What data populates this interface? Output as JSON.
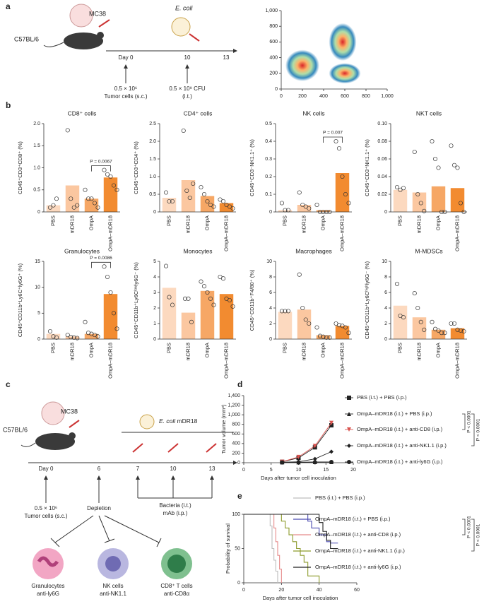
{
  "figure": {
    "panel_labels": [
      "a",
      "b",
      "c",
      "d",
      "e"
    ]
  },
  "scheme_a": {
    "cell_line": "MC38",
    "mouse": "C57BL/6",
    "bacteria": "E. coli",
    "days": [
      "Day 0",
      "10",
      "13"
    ],
    "tumor_dose": "0.5 × 10⁶",
    "tumor_route": "Tumor cells (s.c.)",
    "bacteria_dose": "0.5 × 10⁹ CFU",
    "bacteria_route": "(i.t.)"
  },
  "scheme_c": {
    "cell_line": "MC38",
    "mouse": "C57BL/6",
    "bacteria": "E. coli",
    "strain": "mDR18",
    "days": [
      "Day 0",
      "6",
      "7",
      "10",
      "13"
    ],
    "tumor_dose": "0.5 × 10⁶",
    "tumor_route": "Tumor cells (s.c.)",
    "depletion": "Depletion",
    "treatment_1": "Bacteria (i.t.)",
    "treatment_2": "mAb (i.p.)",
    "cells": [
      {
        "name": "Granulocytes",
        "antibody": "anti-ly6G"
      },
      {
        "name": "NK cells",
        "antibody": "anti-NK1.1"
      },
      {
        "name": "CD8⁺ T cells",
        "antibody": "anti-CD8α"
      }
    ]
  },
  "chart_data": [
    {
      "type": "bar_dot",
      "title": "CD8⁺ cells",
      "ylabel": "CD45⁺CD3⁺CD8⁺ (%)",
      "categories": [
        "PBS",
        "mDR18",
        "OmpA",
        "OmpA–mDR18"
      ],
      "colors": [
        "#fcd9bf",
        "#fbc7a0",
        "#f6a765",
        "#f28b30"
      ],
      "values": [
        0.15,
        0.6,
        0.3,
        0.78
      ],
      "points": [
        [
          0.1,
          0.15,
          0.3
        ],
        [
          1.85,
          0.3,
          0.1,
          0.15
        ],
        [
          0.5,
          0.3,
          0.3,
          0.2,
          0.1
        ],
        [
          0.95,
          0.85,
          0.8,
          0.6,
          0.5
        ]
      ],
      "ylim": [
        0,
        2
      ],
      "yticks": [
        0,
        0.5,
        {
          "value": 1,
          "label": "1.0"
        },
        1.5,
        {
          "value": 2,
          "label": "2.0"
        }
      ],
      "annotation": "P = 0.0067"
    },
    {
      "type": "bar_dot",
      "title": "CD4⁺ cells",
      "ylabel": "CD45⁺CD3⁺CD4⁺ (%)",
      "categories": [
        "PBS",
        "mDR18",
        "OmpA",
        "OmpA–mDR18"
      ],
      "colors": [
        "#fcd9bf",
        "#fbc7a0",
        "#f6a765",
        "#f28b30"
      ],
      "values": [
        0.4,
        0.9,
        0.45,
        0.25
      ],
      "points": [
        [
          0.55,
          0.3,
          0.3
        ],
        [
          2.3,
          0.6,
          0.4,
          0.8
        ],
        [
          0.7,
          0.5,
          0.3,
          0.2,
          0.15
        ],
        [
          0.35,
          0.3,
          0.2,
          0.15,
          0.1
        ]
      ],
      "ylim": [
        0,
        2.5
      ],
      "yticks": [
        0,
        0.5,
        {
          "value": 1,
          "label": "1.0"
        },
        1.5,
        {
          "value": 2,
          "label": "2.0"
        },
        2.5
      ]
    },
    {
      "type": "bar_dot",
      "title": "NK cells",
      "ylabel": "CD45⁺CD3⁻NK1.1⁺ (%)",
      "categories": [
        "PBS",
        "mDR18",
        "OmpA",
        "OmpA–mDR18"
      ],
      "colors": [
        "#fcd9bf",
        "#fbc7a0",
        "#f6a765",
        "#f28b30"
      ],
      "values": [
        0.01,
        0.04,
        0.01,
        0.22
      ],
      "points": [
        [
          0.05,
          0.01,
          0.01
        ],
        [
          0.11,
          0.04,
          0.03,
          0.02
        ],
        [
          0.04,
          0,
          0,
          0,
          0
        ],
        [
          0.4,
          0.36,
          0.2,
          0.1,
          0.05
        ]
      ],
      "ylim": [
        0,
        0.5
      ],
      "yticks": [
        0,
        0.1,
        0.2,
        0.3,
        0.4,
        0.5
      ],
      "annotation": "P = 0.007"
    },
    {
      "type": "bar_dot",
      "title": "NKT cells",
      "ylabel": "CD45⁺CD3⁺NK1.1⁺ (%)",
      "categories": [
        "PBS",
        "mDR18",
        "OmpA",
        "OmpA–mDR18"
      ],
      "colors": [
        "#fcd9bf",
        "#fbc7a0",
        "#f6a765",
        "#f28b30"
      ],
      "values": [
        0.025,
        0.022,
        0.029,
        0.027
      ],
      "points": [
        [
          0.028,
          0.025,
          0.027
        ],
        [
          0.068,
          0.02,
          0.01,
          0.001
        ],
        [
          0.08,
          0.06,
          0.05,
          0,
          0
        ],
        [
          0.075,
          0.053,
          0.05,
          0.01,
          0
        ]
      ],
      "ylim": [
        0,
        0.1
      ],
      "yticks": [
        0,
        0.02,
        0.04,
        0.06,
        0.08,
        {
          "value": 0.1,
          "label": "0.10"
        }
      ]
    },
    {
      "type": "bar_dot",
      "title": "Granulocytes",
      "ylabel": "CD45⁺CD11b⁺Ly6C⁺ly6G⁺ (%)",
      "categories": [
        "PBS",
        "mDR18",
        "OmpA",
        "OmpA–mDR18"
      ],
      "colors": [
        "#fcd9bf",
        "#fbc7a0",
        "#f6a765",
        "#f28b30"
      ],
      "values": [
        1,
        0.5,
        1,
        8.7
      ],
      "points": [
        [
          1.5,
          0.5,
          0.3
        ],
        [
          0.8,
          0.4,
          0.3,
          0.2
        ],
        [
          3.3,
          1.2,
          1,
          0.8,
          0.5
        ],
        [
          14,
          12,
          9,
          5,
          2
        ]
      ],
      "ylim": [
        0,
        15
      ],
      "yticks": [
        0,
        5,
        10,
        15
      ],
      "annotation": "P = 0.0086"
    },
    {
      "type": "bar_dot",
      "title": "Monocytes",
      "ylabel": "CD45⁺CD11b⁺Ly6Cˡᵒʷly6G⁻ (%)",
      "categories": [
        "PBS",
        "mDR18",
        "OmpA",
        "OmpA–mDR18"
      ],
      "colors": [
        "#fcd9bf",
        "#fbc7a0",
        "#f6a765",
        "#f28b30"
      ],
      "values": [
        3.3,
        1.7,
        3.1,
        2.9
      ],
      "points": [
        [
          4.7,
          2.7,
          2.2
        ],
        [
          2.6,
          2.6,
          1.1
        ],
        [
          3.7,
          3.4,
          3,
          2.6,
          2.2
        ],
        [
          4,
          3.9,
          2.6,
          2.5,
          2.1
        ]
      ],
      "ylim": [
        0,
        5
      ],
      "yticks": [
        0,
        1,
        2,
        3,
        4,
        5
      ]
    },
    {
      "type": "bar_dot",
      "title": "Macrophages",
      "ylabel": "CD45⁺CD11b⁺F4/80⁺ (%)",
      "categories": [
        "PBS",
        "mDR18",
        "OmpA",
        "OmpA–mDR18"
      ],
      "colors": [
        "#fcd9bf",
        "#fbc7a0",
        "#f6a765",
        "#f28b30"
      ],
      "values": [
        3.5,
        3.8,
        0.5,
        1.7
      ],
      "points": [
        [
          3.6,
          3.6,
          3.6
        ],
        [
          8.3,
          4,
          2.5,
          2
        ],
        [
          1.5,
          0.4,
          0.3,
          0.2,
          0.2
        ],
        [
          2,
          1.8,
          1.7,
          1.5,
          0.8
        ]
      ],
      "ylim": [
        0,
        10
      ],
      "yticks": [
        0,
        2,
        4,
        6,
        8,
        10
      ]
    },
    {
      "type": "bar_dot",
      "title": "M-MDSCs",
      "ylabel": "CD45⁺CD11b⁺Ly6Cʰⁱᵍʰly6G⁻ (%)",
      "categories": [
        "PBS",
        "mDR18",
        "OmpA",
        "OmpA–mDR18"
      ],
      "colors": [
        "#fcd9bf",
        "#fbc7a0",
        "#f6a765",
        "#f28b30"
      ],
      "values": [
        4.3,
        2.8,
        1.2,
        1.4
      ],
      "points": [
        [
          7.1,
          3,
          2.8
        ],
        [
          5.9,
          4,
          2.2,
          1.2
        ],
        [
          2.2,
          1.3,
          1.1,
          0.8,
          0.8
        ],
        [
          2,
          2,
          1.2,
          1.1,
          1
        ]
      ],
      "ylim": [
        0,
        10
      ],
      "yticks": [
        0,
        2,
        4,
        6,
        8,
        10
      ]
    },
    {
      "type": "line",
      "ylabel": "Tumor volume (mm³)",
      "xlabel": "Days after tumor cell inoculation",
      "x": [
        7,
        10,
        13,
        16
      ],
      "series": [
        {
          "name": "PBS (i.t.) + PBS (i.p.)",
          "color": "#222222",
          "marker": "square",
          "values": [
            20,
            100,
            320,
            780
          ]
        },
        {
          "name": "OmpA–mDR18 (i.t.) + PBS (i.p.)",
          "color": "#222222",
          "marker": "triangle",
          "values": [
            10,
            10,
            15,
            15
          ]
        },
        {
          "name": "OmpA–mDR18 (i.t.) + anti-CD8 (i.p.)",
          "color": "#d9534f",
          "marker": "triangle-down",
          "values": [
            20,
            120,
            350,
            830
          ]
        },
        {
          "name": "OmpA–mDR18 (i.t.) + anti-NK1.1 (i.p.)",
          "color": "#222222",
          "marker": "diamond",
          "values": [
            10,
            20,
            80,
            230
          ]
        },
        {
          "name": "OmpA–mDR18 (i.t.) + anti-ly6G (i.p.)",
          "color": "#222222",
          "marker": "circle",
          "values": [
            5,
            5,
            10,
            15
          ]
        }
      ],
      "xlim": [
        0,
        20
      ],
      "xticks": [
        0,
        5,
        10,
        15,
        20
      ],
      "ylim": [
        0,
        1400
      ],
      "yticks": [
        0,
        200,
        400,
        600,
        800,
        {
          "value": 1000,
          "label": "1,000"
        },
        {
          "value": 1200,
          "label": "1,200"
        },
        {
          "value": 1400,
          "label": "1,400"
        }
      ],
      "annotations": [
        "P < 0.0001",
        "P < 0.0001"
      ]
    },
    {
      "type": "survival",
      "ylabel": "Probability of survival",
      "xlabel": "Days after tumor cell inoculation",
      "series": [
        {
          "name": "PBS (i.t.) + PBS (i.p.)",
          "color": "#bdbdbd",
          "x": [
            0,
            14,
            15,
            16,
            17,
            18
          ],
          "values": [
            100,
            83,
            50,
            33,
            17,
            0
          ]
        },
        {
          "name": "OmpA–mDR18 (i.t.) + PBS (i.p.)",
          "color": "#4b4bb0",
          "x": [
            0,
            34,
            36,
            40,
            44,
            46,
            50
          ],
          "values": [
            100,
            90,
            80,
            70,
            60,
            58,
            58
          ]
        },
        {
          "name": "OmpA–mDR18 (i.t.) + anti-CD8 (i.p.)",
          "color": "#e58a8a",
          "x": [
            0,
            16,
            17,
            18,
            19,
            20
          ],
          "values": [
            100,
            80,
            60,
            40,
            20,
            0
          ]
        },
        {
          "name": "OmpA–mDR18 (i.t.) + anti-NK1.1 (i.p.)",
          "color": "#8c9a2b",
          "x": [
            0,
            20,
            22,
            24,
            26,
            28,
            30,
            32,
            34,
            40
          ],
          "values": [
            100,
            90,
            80,
            70,
            60,
            50,
            40,
            30,
            10,
            0
          ]
        },
        {
          "name": "OmpA–mDR18 (i.t.) + anti-ly6G (i.p.)",
          "color": "#222222",
          "x": [
            0,
            40,
            42,
            44,
            46,
            50
          ],
          "values": [
            100,
            88,
            75,
            62,
            50,
            50
          ]
        }
      ],
      "xlim": [
        0,
        60
      ],
      "xticks": [
        0,
        20,
        40,
        60
      ],
      "ylim": [
        0,
        100
      ],
      "yticks": [
        0,
        50,
        100
      ],
      "annotations": [
        "P < 0.0001",
        "P < 0.0001"
      ]
    },
    {
      "type": "density",
      "xlim": [
        0,
        1000
      ],
      "ylim": [
        0,
        1000
      ],
      "xticks": [
        0,
        200,
        400,
        600,
        800,
        {
          "value": 1000,
          "label": "1,000"
        }
      ],
      "yticks": [
        0,
        200,
        400,
        600,
        800,
        {
          "value": 1000,
          "label": "1,000"
        }
      ]
    }
  ]
}
